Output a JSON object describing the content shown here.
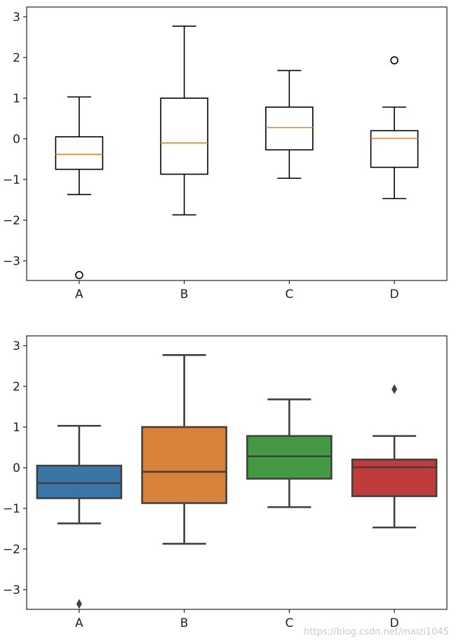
{
  "watermark": "https://blog.csdn.net/maizi1045",
  "chart_data": [
    {
      "type": "box",
      "style": "matplotlib",
      "categories": [
        "A",
        "B",
        "C",
        "D"
      ],
      "yticks": [
        3,
        2,
        1,
        0,
        -1,
        -2,
        -3
      ],
      "ylim": [
        -3.65,
        3.05
      ],
      "grid": false,
      "box_facecolor": "#ffffff",
      "median_color": "#ff7f0e",
      "series": [
        {
          "category": "A",
          "whisker_low": -1.37,
          "q1": -0.75,
          "median": -0.38,
          "q3": 0.05,
          "whisker_high": 1.03,
          "outliers": [
            -3.35
          ]
        },
        {
          "category": "B",
          "whisker_low": -1.87,
          "q1": -0.87,
          "median": -0.1,
          "q3": 1.0,
          "whisker_high": 2.77,
          "outliers": []
        },
        {
          "category": "C",
          "whisker_low": -0.97,
          "q1": -0.27,
          "median": 0.28,
          "q3": 0.78,
          "whisker_high": 1.68,
          "outliers": []
        },
        {
          "category": "D",
          "whisker_low": -1.47,
          "q1": -0.7,
          "median": 0.01,
          "q3": 0.2,
          "whisker_high": 0.78,
          "outliers": [
            1.93
          ]
        }
      ]
    },
    {
      "type": "box",
      "style": "seaborn",
      "categories": [
        "A",
        "B",
        "C",
        "D"
      ],
      "yticks": [
        3,
        2,
        1,
        0,
        -1,
        -2,
        -3
      ],
      "ylim": [
        -3.65,
        3.05
      ],
      "grid": false,
      "colors": [
        "#3a75a8",
        "#d9823b",
        "#449a44",
        "#c03c3c"
      ],
      "series": [
        {
          "category": "A",
          "whisker_low": -1.37,
          "q1": -0.75,
          "median": -0.38,
          "q3": 0.05,
          "whisker_high": 1.03,
          "outliers": [
            -3.35
          ]
        },
        {
          "category": "B",
          "whisker_low": -1.87,
          "q1": -0.87,
          "median": -0.1,
          "q3": 1.0,
          "whisker_high": 2.77,
          "outliers": []
        },
        {
          "category": "C",
          "whisker_low": -0.97,
          "q1": -0.27,
          "median": 0.28,
          "q3": 0.78,
          "whisker_high": 1.68,
          "outliers": []
        },
        {
          "category": "D",
          "whisker_low": -1.47,
          "q1": -0.7,
          "median": 0.01,
          "q3": 0.2,
          "whisker_high": 0.78,
          "outliers": [
            1.93
          ]
        }
      ]
    }
  ]
}
